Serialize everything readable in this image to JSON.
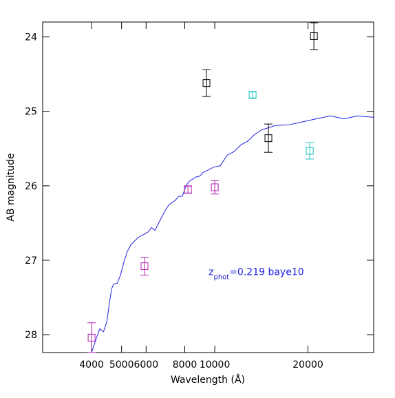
{
  "chart_data": {
    "type": "scatter",
    "xlabel": "Wavelength (Å)",
    "ylabel": "AB magnitude",
    "xlog": true,
    "yinverted": true,
    "xlim": [
      2780,
      32600
    ],
    "ylim": [
      23.8,
      28.24
    ],
    "xticks": [
      4000,
      5000,
      6000,
      8000,
      10000,
      20000
    ],
    "yticks": [
      24,
      25,
      26,
      27,
      28
    ],
    "annotation": {
      "parts": [
        "z",
        "phot",
        "=0.219 baye10"
      ],
      "x": 10000,
      "y": 27.2,
      "color": "#2020e0"
    },
    "model": {
      "color": "#2020e0",
      "x": [
        4000,
        4150,
        4250,
        4370,
        4480,
        4550,
        4640,
        4710,
        4840,
        4960,
        5090,
        5220,
        5360,
        5640,
        5780,
        5930,
        6090,
        6250,
        6410,
        6570,
        6740,
        6920,
        7100,
        7470,
        7660,
        7860,
        8070,
        8270,
        8490,
        8710,
        8940,
        9170,
        9400,
        9900,
        10420,
        10960,
        11540,
        12150,
        12780,
        13450,
        14160,
        14900,
        15690,
        17380,
        19250,
        21320,
        23620,
        26160,
        28980,
        32600
      ],
      "values": [
        28.24,
        28.04,
        27.92,
        27.96,
        27.83,
        27.62,
        27.39,
        27.32,
        27.31,
        27.2,
        27.02,
        26.88,
        26.79,
        26.7,
        26.67,
        26.65,
        26.62,
        26.56,
        26.6,
        26.51,
        26.42,
        26.33,
        26.26,
        26.19,
        26.14,
        26.14,
        26.0,
        25.94,
        25.91,
        25.88,
        25.87,
        25.82,
        25.8,
        25.75,
        25.73,
        25.59,
        25.54,
        25.45,
        25.4,
        25.31,
        25.25,
        25.22,
        25.19,
        25.18,
        25.14,
        25.1,
        25.06,
        25.1,
        25.06,
        25.08
      ]
    },
    "series": [
      {
        "color": "#b020b0",
        "x": [
          4000,
          5930,
          8190,
          10000
        ],
        "values": [
          28.04,
          27.08,
          26.05,
          26.02
        ],
        "errors": [
          0.2,
          0.12,
          0.05,
          0.09
        ]
      },
      {
        "color": "#20c0c0",
        "x": [
          13250,
          20270
        ],
        "values": [
          24.78,
          25.53
        ],
        "errors": [
          0.04,
          0.11
        ]
      },
      {
        "color": "#000000",
        "x": [
          9400,
          14900,
          20900
        ],
        "values": [
          24.62,
          25.36,
          23.99
        ],
        "errors": [
          0.18,
          0.19,
          0.18
        ]
      }
    ]
  }
}
